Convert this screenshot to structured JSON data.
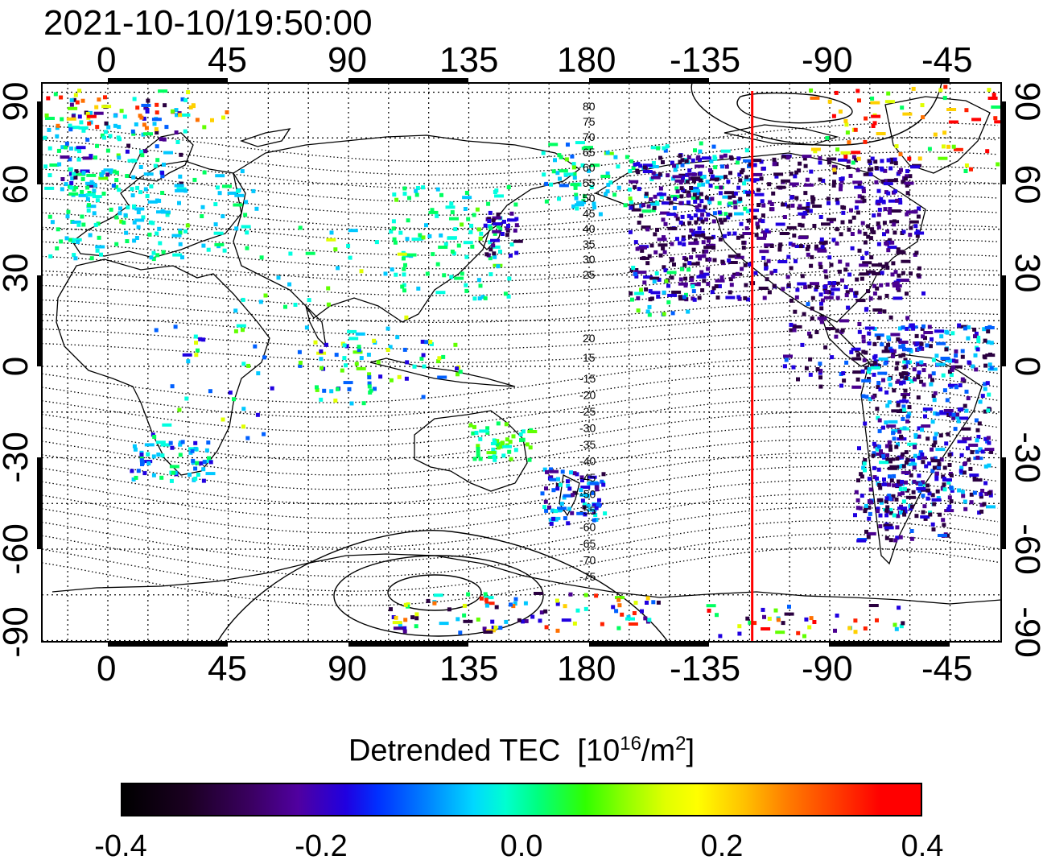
{
  "timestamp": "2021-10-10/19:50:00",
  "map": {
    "lon_ticks": [
      "0",
      "45",
      "90",
      "135",
      "180",
      "-135",
      "-90",
      "-45"
    ],
    "lat_ticks": [
      "90",
      "60",
      "30",
      "0",
      "-30",
      "-60",
      "-90"
    ],
    "contour_labels_north": [
      "80",
      "75",
      "70",
      "65",
      "60",
      "55",
      "50",
      "45",
      "40",
      "35",
      "30",
      "25",
      "20",
      "15"
    ],
    "contour_labels_south": [
      "-15",
      "-20",
      "-25",
      "-30",
      "-35",
      "-40",
      "-45",
      "-50",
      "-55",
      "-60",
      "-65",
      "-70",
      "-75"
    ],
    "terminator_color": "#ff0000",
    "terminator_lon": -119
  },
  "colorbar": {
    "title": "Detrended TEC",
    "unit_base": "[10",
    "unit_exp": "16",
    "unit_mid": "/m",
    "unit_exp2": "2",
    "unit_end": "]",
    "ticks": [
      "-0.4",
      "-0.2",
      "0.0",
      "0.2",
      "0.4"
    ],
    "range": [
      -0.4,
      0.4
    ]
  }
}
